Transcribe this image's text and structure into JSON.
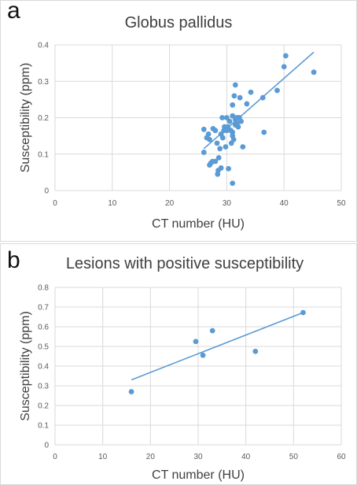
{
  "panels": {
    "a": {
      "letter": "a"
    },
    "b": {
      "letter": "b"
    }
  },
  "colors": {
    "marker": "#5b9bd5",
    "trendline": "#5b9bd5",
    "grid": "#d9d9d9",
    "text": "#404040"
  },
  "chart_data": [
    {
      "type": "scatter",
      "title": "Globus pallidus",
      "xlabel": "CT number (HU)",
      "ylabel": "Susceptibility (ppm)",
      "xlim": [
        0,
        50
      ],
      "ylim": [
        0,
        0.4
      ],
      "xticks": [
        "0",
        "10",
        "20",
        "30",
        "40",
        "50"
      ],
      "yticks": [
        "0",
        "0.1",
        "0.2",
        "0.3",
        "0.4"
      ],
      "grid": true,
      "trendline": {
        "x": [
          26,
          45.2
        ],
        "y": [
          0.115,
          0.38
        ]
      },
      "x": [
        26,
        26,
        26.5,
        26.8,
        27,
        27,
        27.2,
        27.5,
        27.6,
        28,
        28,
        28.3,
        28.4,
        28.5,
        28.6,
        28.8,
        29,
        29,
        29.2,
        29.3,
        29.5,
        29.6,
        29.8,
        30,
        30,
        30.2,
        30.3,
        30.5,
        30.7,
        30.8,
        31,
        31,
        31,
        31,
        31,
        31.2,
        31.3,
        31.5,
        31.5,
        31.5,
        31.7,
        31.8,
        32,
        32,
        32.2,
        32.3,
        32.5,
        32.8,
        33.5,
        34.2,
        36.3,
        36.5,
        38.8,
        40,
        40.3,
        45.2
      ],
      "y": [
        0.168,
        0.105,
        0.145,
        0.155,
        0.07,
        0.14,
        0.075,
        0.08,
        0.17,
        0.08,
        0.165,
        0.13,
        0.045,
        0.055,
        0.09,
        0.115,
        0.062,
        0.155,
        0.2,
        0.145,
        0.165,
        0.175,
        0.12,
        0.165,
        0.2,
        0.175,
        0.06,
        0.19,
        0.165,
        0.13,
        0.235,
        0.205,
        0.15,
        0.16,
        0.02,
        0.14,
        0.26,
        0.18,
        0.29,
        0.195,
        0.2,
        0.185,
        0.175,
        0.2,
        0.2,
        0.255,
        0.19,
        0.12,
        0.238,
        0.27,
        0.255,
        0.16,
        0.275,
        0.34,
        0.37,
        0.325
      ]
    },
    {
      "type": "scatter",
      "title": "Lesions with positive susceptibility",
      "xlabel": "CT number  (HU)",
      "ylabel": "Susceptibility (ppm)",
      "xlim": [
        0,
        60
      ],
      "ylim": [
        0,
        0.8
      ],
      "xticks": [
        "0",
        "10",
        "20",
        "30",
        "40",
        "50",
        "60"
      ],
      "yticks": [
        "0",
        "0.1",
        "0.2",
        "0.3",
        "0.4",
        "0.5",
        "0.6",
        "0.7",
        "0.8"
      ],
      "grid": true,
      "trendline": {
        "x": [
          16,
          52
        ],
        "y": [
          0.33,
          0.672
        ]
      },
      "x": [
        16,
        29.5,
        31,
        33,
        42,
        52
      ],
      "y": [
        0.27,
        0.525,
        0.455,
        0.58,
        0.475,
        0.672
      ]
    }
  ]
}
